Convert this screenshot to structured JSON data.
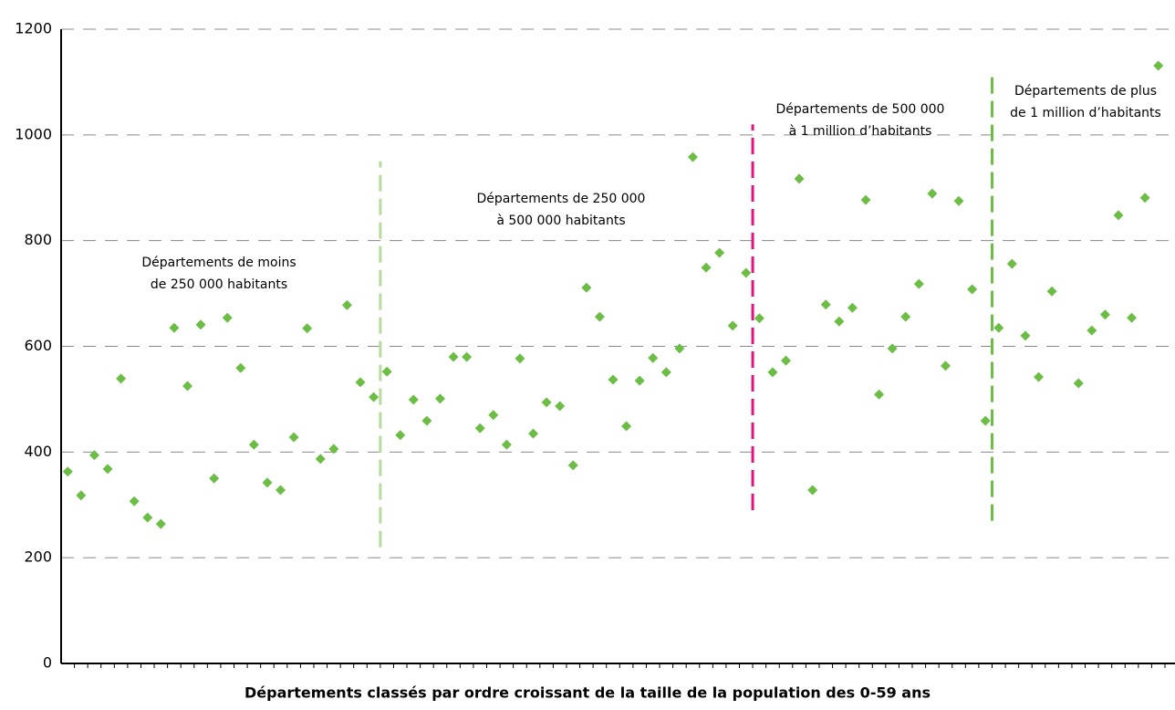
{
  "chart_data": {
    "type": "scatter",
    "x_label": "Départements classés par ordre croissant de la taille de la population des 0-59 ans",
    "categories": [
      null,
      null,
      null,
      null,
      null,
      null,
      null,
      null,
      null,
      null,
      null,
      null,
      null,
      null,
      null,
      null,
      null,
      null,
      null,
      null,
      null,
      null,
      null,
      null,
      null,
      null,
      null,
      null,
      null,
      null,
      null,
      null,
      null,
      null,
      null,
      null,
      null,
      null,
      null,
      null,
      null,
      null,
      null,
      null,
      null,
      null,
      null,
      null,
      null,
      null,
      null,
      null,
      null,
      null,
      null,
      null,
      null,
      null,
      null,
      null,
      null,
      null,
      null,
      null,
      null,
      null,
      null,
      null,
      null,
      null,
      null,
      null,
      null,
      null,
      null,
      null,
      null,
      null,
      null,
      null,
      null,
      null,
      null
    ],
    "values": [
      363,
      318,
      394,
      368,
      539,
      307,
      276,
      264,
      635,
      525,
      641,
      350,
      654,
      559,
      414,
      342,
      328,
      428,
      634,
      387,
      406,
      678,
      532,
      504,
      552,
      432,
      499,
      459,
      501,
      580,
      580,
      445,
      470,
      414,
      577,
      435,
      494,
      487,
      375,
      711,
      656,
      537,
      449,
      535,
      578,
      551,
      596,
      958,
      749,
      777,
      639,
      739,
      653,
      551,
      573,
      917,
      328,
      679,
      647,
      673,
      877,
      509,
      596,
      656,
      718,
      889,
      563,
      875,
      708,
      459,
      635,
      756,
      620,
      542,
      704,
      null,
      530,
      630,
      660,
      848,
      654,
      881,
      1131
    ],
    "color": "#6cbd45",
    "ylim": [
      0,
      1200
    ],
    "yticks": [
      0,
      200,
      400,
      600,
      800,
      1000,
      1200
    ],
    "grid": true,
    "dividers": [
      {
        "after": 24,
        "color": "#b5dc9a"
      },
      {
        "after": 52,
        "color": "#e5127d"
      },
      {
        "after": 70,
        "color": "#6cbd45"
      }
    ],
    "annotations": [
      [
        "Départements de moins",
        "de 250 000 habitants"
      ],
      [
        "Départements de 250 000",
        "à 500 000 habitants"
      ],
      [
        "Départements de 500 000",
        "à 1 million d’habitants"
      ],
      [
        "Départements de plus",
        "de 1 million d’habitants"
      ]
    ]
  }
}
